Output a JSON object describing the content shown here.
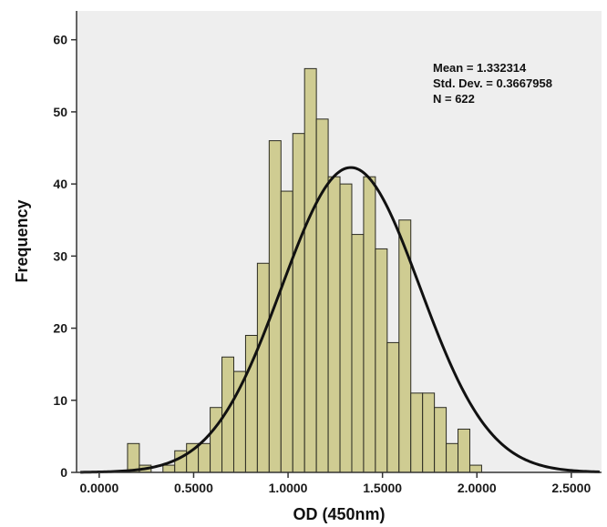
{
  "chart_data": {
    "type": "bar",
    "title": "",
    "xlabel": "OD (450nm)",
    "ylabel": "Frequency",
    "xlim": [
      -0.12,
      2.66
    ],
    "ylim": [
      0,
      64
    ],
    "x_ticks": [
      0,
      0.5,
      1.0,
      1.5,
      2.0,
      2.5
    ],
    "x_tick_labels": [
      "0.0000",
      "0.5000",
      "1.0000",
      "1.5000",
      "2.0000",
      "2.5000"
    ],
    "y_ticks": [
      0,
      10,
      20,
      30,
      40,
      50,
      60
    ],
    "y_tick_labels": [
      "0",
      "10",
      "20",
      "30",
      "40",
      "50",
      "60"
    ],
    "bin_width": 0.0625,
    "bin_start": 0.15,
    "values": [
      4,
      1,
      0,
      1,
      3,
      4,
      4,
      9,
      16,
      14,
      19,
      29,
      46,
      39,
      47,
      56,
      49,
      41,
      40,
      33,
      41,
      31,
      18,
      35,
      11,
      11,
      9,
      4,
      6,
      1
    ],
    "bar_color": "#cfcc92",
    "plot_background": "#eeeeee",
    "curve": {
      "type": "normal",
      "mean": 1.332314,
      "std": 0.3667958,
      "n": 622
    },
    "stats_text": [
      "Mean = 1.332314",
      "Std. Dev. = 0.3667958",
      "N = 622"
    ],
    "grid": false,
    "legend": "none"
  }
}
